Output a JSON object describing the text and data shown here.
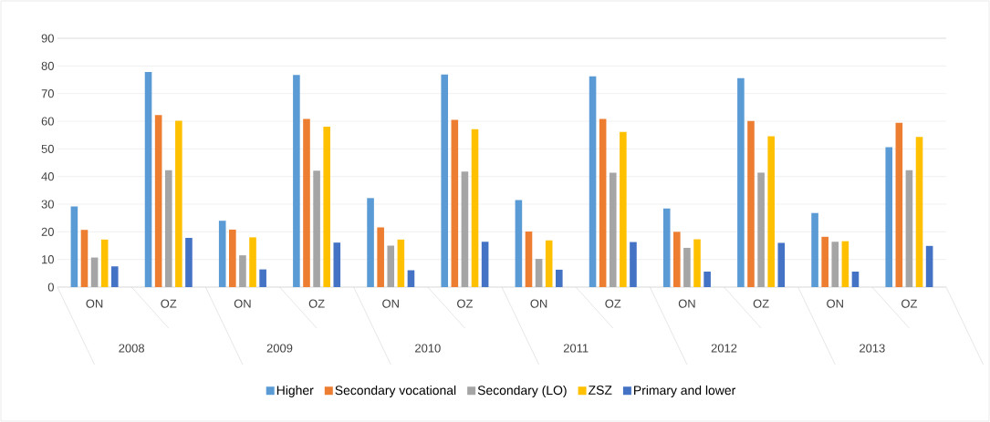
{
  "chart_data": {
    "type": "bar",
    "categories": [
      "ON",
      "OZ",
      "ON",
      "OZ",
      "ON",
      "OZ",
      "ON",
      "OZ",
      "ON",
      "OZ",
      "ON",
      "OZ"
    ],
    "annotations": [
      "2008",
      "2009",
      "2010",
      "2011",
      "2012",
      "2013"
    ],
    "series": [
      {
        "name": "Higher",
        "color": "#5b9bd5",
        "values": [
          29.2,
          77.8,
          24.0,
          76.7,
          32.2,
          76.9,
          31.5,
          76.2,
          28.4,
          75.6,
          26.8,
          50.6
        ]
      },
      {
        "name": "Secondary vocational",
        "color": "#ed7d31",
        "values": [
          20.7,
          62.2,
          20.8,
          60.8,
          21.6,
          60.5,
          20.1,
          60.8,
          20.0,
          60.1,
          18.2,
          59.4
        ]
      },
      {
        "name": "Secondary (LO)",
        "color": "#a5a5a5",
        "values": [
          10.7,
          42.3,
          11.5,
          42.1,
          15.0,
          41.8,
          10.2,
          41.4,
          14.2,
          41.4,
          16.4,
          42.3
        ]
      },
      {
        "name": "ZSZ",
        "color": "#ffc000",
        "values": [
          17.2,
          60.2,
          18.0,
          58.0,
          17.2,
          57.1,
          16.9,
          56.1,
          17.3,
          54.6,
          16.6,
          54.3
        ]
      },
      {
        "name": "Primary and lower",
        "color": "#4472c4",
        "values": [
          7.5,
          17.8,
          6.4,
          16.1,
          6.1,
          16.4,
          6.3,
          16.3,
          5.6,
          16.0,
          5.6,
          14.9
        ]
      }
    ],
    "ylim": [
      0,
      90
    ],
    "yticks": [
      0,
      10,
      20,
      30,
      40,
      50,
      60,
      70,
      80,
      90
    ],
    "grid": "y",
    "legend": "bottom"
  }
}
